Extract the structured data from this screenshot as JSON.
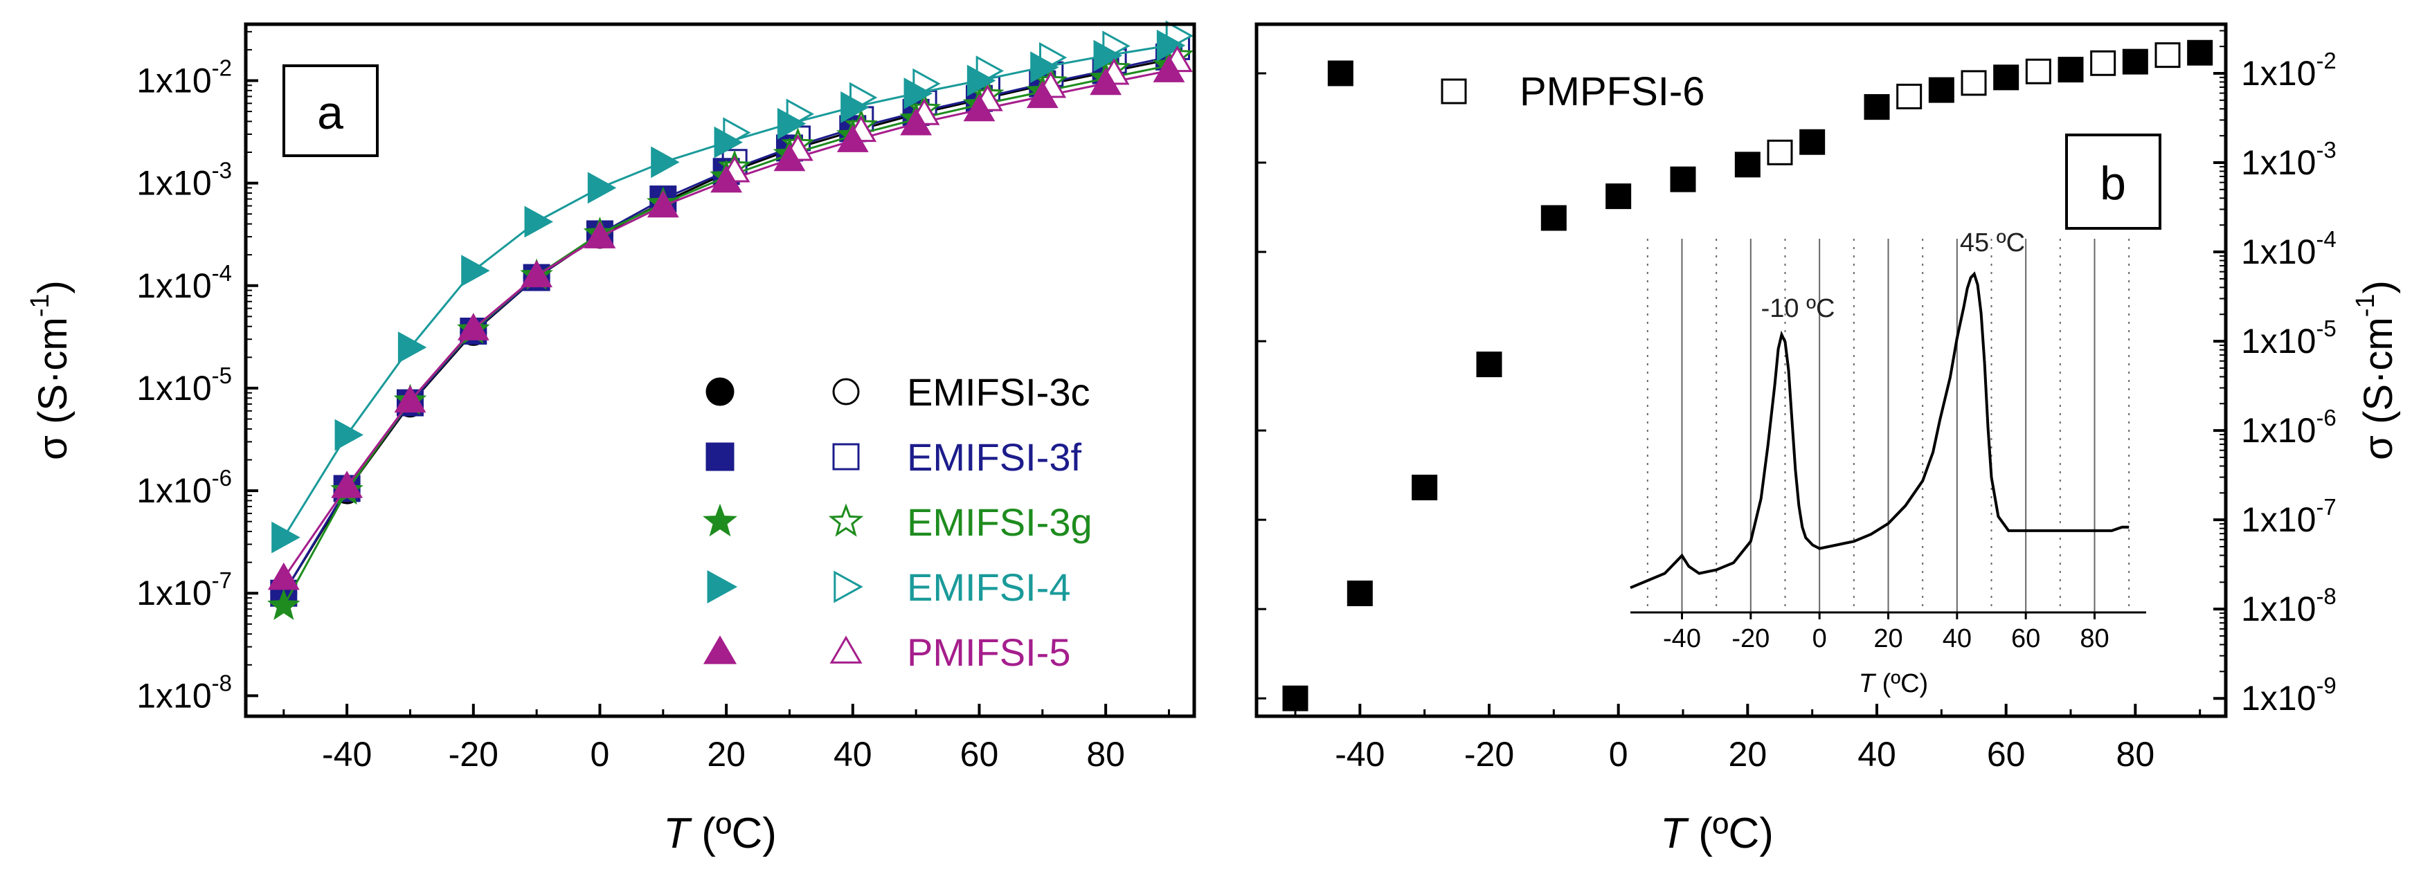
{
  "chart_data": [
    {
      "type": "scatter",
      "panel_label": "a",
      "xlabel_var": "T",
      "xlabel_unit": " (ºC)",
      "ylabel_sym": "σ",
      "ylabel_unit_open": "(S·cm",
      "ylabel_unit_exp": "-1",
      "ylabel_unit_close": ")",
      "xlim": [
        -56,
        94
      ],
      "ylim_exp": [
        -8.2,
        -1.45
      ],
      "log_y": true,
      "x_ticks": [
        -40,
        -20,
        0,
        20,
        40,
        60,
        80
      ],
      "x_tick_labels": [
        "-40",
        "-20",
        "0",
        "20",
        "40",
        "60",
        "80"
      ],
      "y_tick_exps": [
        -8,
        -7,
        -6,
        -5,
        -4,
        -3,
        -2
      ],
      "y_tick_labels": [
        {
          "base": "1x10",
          "exp": "-8"
        },
        {
          "base": "1x10",
          "exp": "-7"
        },
        {
          "base": "1x10",
          "exp": "-6"
        },
        {
          "base": "1x10",
          "exp": "-5"
        },
        {
          "base": "1x10",
          "exp": "-4"
        },
        {
          "base": "1x10",
          "exp": "-3"
        },
        {
          "base": "1x10",
          "exp": "-2"
        }
      ],
      "legend_position": "lower-right",
      "series": [
        {
          "name": "EMIFSI-3c",
          "color": "#000000",
          "marker": "circle",
          "x": [
            -50,
            -40,
            -30,
            -20,
            -10,
            0,
            10,
            20,
            30,
            40,
            50,
            60,
            70,
            80,
            90
          ],
          "y": [
            1e-07,
            1e-06,
            7e-06,
            3.5e-05,
            0.00012,
            0.00031,
            0.00065,
            0.00125,
            0.0021,
            0.0032,
            0.0047,
            0.0065,
            0.009,
            0.012,
            0.016
          ]
        },
        {
          "name": "EMIFSI-3f",
          "color": "#1c1c8c",
          "marker": "square",
          "x": [
            -50,
            -40,
            -30,
            -20,
            -10,
            0,
            10,
            20,
            30,
            40,
            50,
            60,
            70,
            80,
            90
          ],
          "y": [
            1e-07,
            1.05e-06,
            7.2e-06,
            3.6e-05,
            0.00012,
            0.00032,
            0.0007,
            0.0013,
            0.0022,
            0.0034,
            0.0049,
            0.0067,
            0.0093,
            0.0125,
            0.017
          ]
        },
        {
          "name": "EMIFSI-3g",
          "color": "#1e8c1e",
          "marker": "star",
          "x": [
            -50,
            -40,
            -30,
            -20,
            -10,
            0,
            10,
            20,
            30,
            40,
            50,
            60,
            70,
            80,
            90
          ],
          "y": [
            7.5e-08,
            1e-06,
            7.5e-06,
            3.7e-05,
            0.000125,
            0.00032,
            0.00063,
            0.00115,
            0.0019,
            0.0029,
            0.0042,
            0.0058,
            0.0078,
            0.0105,
            0.014
          ]
        },
        {
          "name": "EMIFSI-4",
          "color": "#1a9a9a",
          "marker": "triangle-right",
          "x": [
            -50,
            -40,
            -30,
            -20,
            -10,
            0,
            10,
            20,
            30,
            40,
            50,
            60,
            70,
            80,
            90
          ],
          "y": [
            3.5e-07,
            3.5e-06,
            2.5e-05,
            0.00014,
            0.00042,
            0.0009,
            0.0016,
            0.0025,
            0.0038,
            0.0055,
            0.0075,
            0.01,
            0.0135,
            0.0175,
            0.022
          ]
        },
        {
          "name": "PMIFSI-5",
          "color": "#a51e8c",
          "marker": "triangle-up",
          "x": [
            -50,
            -40,
            -30,
            -20,
            -10,
            0,
            10,
            20,
            30,
            40,
            50,
            60,
            70,
            80,
            90
          ],
          "y": [
            1.4e-07,
            1.1e-06,
            7.5e-06,
            3.8e-05,
            0.000125,
            0.0003,
            0.0006,
            0.00105,
            0.0017,
            0.0026,
            0.0038,
            0.0052,
            0.007,
            0.0094,
            0.0125
          ]
        }
      ]
    },
    {
      "type": "scatter",
      "panel_label": "b",
      "legend_label": "PMPFSI-6",
      "xlabel_var": "T",
      "xlabel_unit": "  (ºC)",
      "ylabel_sym": "σ",
      "ylabel_unit_open": "(S·cm",
      "ylabel_unit_exp": "-1",
      "ylabel_unit_close": ")",
      "xlim": [
        -56,
        94
      ],
      "ylim_exp": [
        -9.2,
        -1.45
      ],
      "log_y": true,
      "y_axis_side": "right",
      "x_ticks": [
        -40,
        -20,
        0,
        20,
        40,
        60,
        80
      ],
      "x_tick_labels": [
        "-40",
        "-20",
        "0",
        "20",
        "40",
        "60",
        "80"
      ],
      "y_tick_exps": [
        -9,
        -8,
        -7,
        -6,
        -5,
        -4,
        -3,
        -2
      ],
      "y_tick_labels": [
        {
          "base": "1x10",
          "exp": "-9"
        },
        {
          "base": "1x10",
          "exp": "-8"
        },
        {
          "base": "1x10",
          "exp": "-7"
        },
        {
          "base": "1x10",
          "exp": "-6"
        },
        {
          "base": "1x10",
          "exp": "-5"
        },
        {
          "base": "1x10",
          "exp": "-4"
        },
        {
          "base": "1x10",
          "exp": "-3"
        },
        {
          "base": "1x10",
          "exp": "-2"
        }
      ],
      "legend_position": "top-left",
      "filled": {
        "x": [
          -50,
          -40,
          -30,
          -20,
          -10,
          0,
          10,
          20,
          30,
          40,
          50,
          60,
          70,
          80,
          90
        ],
        "y": [
          1e-09,
          1.5e-08,
          2.3e-07,
          5.5e-06,
          0.00024,
          0.00042,
          0.00065,
          0.00095,
          0.0017,
          0.0042,
          0.0065,
          0.009,
          0.011,
          0.0135,
          0.017
        ]
      },
      "filled_legend_marker": {
        "x": -43,
        "y": 0.01
      },
      "open": {
        "x": [
          25,
          40,
          45,
          55,
          65,
          75,
          85
        ],
        "y": [
          0.0013,
          0.0042,
          0.0055,
          0.0078,
          0.0105,
          0.013,
          0.016
        ]
      },
      "inset": {
        "type": "line",
        "xlabel_var": "T",
        "xlabel_unit": " (ºC)",
        "xlim": [
          -55,
          95
        ],
        "ylim": [
          0,
          1
        ],
        "x_ticks": [
          -40,
          -20,
          0,
          20,
          40,
          60,
          80
        ],
        "x_tick_labels": [
          "-40",
          "-20",
          "0",
          "20",
          "40",
          "60",
          "80"
        ],
        "solid_grid_x": [
          -40,
          -20,
          0,
          20,
          40,
          60,
          80
        ],
        "dotted_grid_x": [
          -50,
          -30,
          -10,
          10,
          30,
          50,
          70,
          90
        ],
        "annotations": [
          {
            "text": "-10 ºC",
            "x": -10
          },
          {
            "text": "45 ºC",
            "x": 45
          }
        ],
        "curve": {
          "x": [
            -55,
            -50,
            -45,
            -42,
            -40,
            -38,
            -35,
            -30,
            -25,
            -20,
            -17,
            -15,
            -13,
            -12,
            -11,
            -10,
            -9,
            -8,
            -7,
            -6,
            -5,
            -4,
            -2,
            0,
            5,
            10,
            15,
            20,
            25,
            30,
            33,
            35,
            38,
            40,
            42,
            43,
            44,
            45,
            46,
            47,
            48,
            49,
            50,
            52,
            55,
            60,
            65,
            70,
            75,
            80,
            85,
            88,
            90
          ],
          "y": [
            0.05,
            0.07,
            0.09,
            0.12,
            0.14,
            0.11,
            0.09,
            0.1,
            0.12,
            0.18,
            0.3,
            0.45,
            0.62,
            0.72,
            0.76,
            0.74,
            0.66,
            0.52,
            0.38,
            0.28,
            0.22,
            0.19,
            0.17,
            0.16,
            0.17,
            0.18,
            0.2,
            0.23,
            0.28,
            0.35,
            0.43,
            0.52,
            0.64,
            0.75,
            0.84,
            0.89,
            0.92,
            0.93,
            0.9,
            0.82,
            0.68,
            0.5,
            0.36,
            0.25,
            0.21,
            0.21,
            0.21,
            0.21,
            0.21,
            0.21,
            0.21,
            0.22,
            0.22
          ]
        }
      }
    }
  ]
}
